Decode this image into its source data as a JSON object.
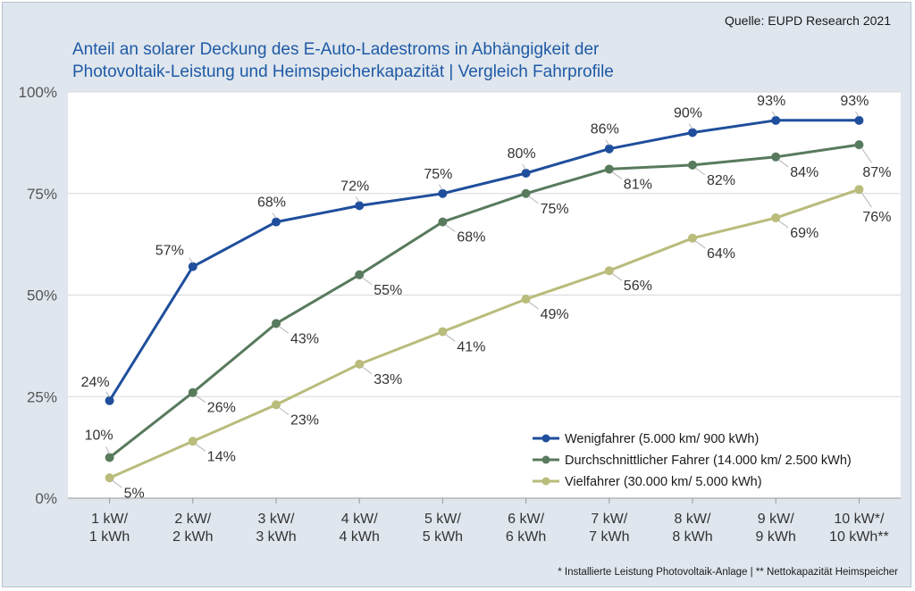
{
  "source": "Quelle: EUPD Research 2021",
  "title_line1": "Anteil an solarer Deckung des E-Auto-Ladestroms in Abhängigkeit der",
  "title_line2": "Photovoltaik-Leistung und Heimspeicherkapazität | Vergleich Fahrprofile",
  "footnote": "* Installierte Leistung Photovoltaik-Anlage | ** Nettokapazität Heimspeicher",
  "chart_data": {
    "type": "line",
    "categories": [
      [
        "1 kW/",
        "1 kWh"
      ],
      [
        "2 kW/",
        "2 kWh"
      ],
      [
        "3 kW/",
        "3 kWh"
      ],
      [
        "4 kW/",
        "4 kWh"
      ],
      [
        "5 kW/",
        "5 kWh"
      ],
      [
        "6 kW/",
        "6 kWh"
      ],
      [
        "7 kW/",
        "7 kWh"
      ],
      [
        "8 kW/",
        "8 kWh"
      ],
      [
        "9 kW/",
        "9 kWh"
      ],
      [
        "10 kW*/",
        "10 kWh**"
      ]
    ],
    "yticks": [
      "0%",
      "25%",
      "50%",
      "75%",
      "100%"
    ],
    "ylim": [
      0,
      100
    ],
    "grid": "horizontal",
    "legend_position": "bottom-right",
    "series": [
      {
        "name": "Wenigfahrer (5.000 km/ 900 kWh)",
        "color": "#1f4e9c",
        "values": [
          24,
          57,
          68,
          72,
          75,
          80,
          86,
          90,
          93,
          93
        ],
        "labels": [
          "24%",
          "57%",
          "68%",
          "72%",
          "75%",
          "80%",
          "86%",
          "90%",
          "93%",
          "93%"
        ]
      },
      {
        "name": "Durchschnittlicher Fahrer (14.000 km/ 2.500 kWh)",
        "color": "#587a5d",
        "values": [
          10,
          26,
          43,
          55,
          68,
          75,
          81,
          82,
          84,
          87
        ],
        "labels": [
          "10%",
          "26%",
          "43%",
          "55%",
          "68%",
          "75%",
          "81%",
          "82%",
          "84%",
          "87%"
        ]
      },
      {
        "name": "Vielfahrer (30.000 km/ 5.000 kWh)",
        "color": "#b9bc7b",
        "values": [
          5,
          14,
          23,
          33,
          41,
          49,
          56,
          64,
          69,
          76
        ],
        "labels": [
          "5%",
          "14%",
          "23%",
          "33%",
          "41%",
          "49%",
          "56%",
          "64%",
          "69%",
          "76%"
        ]
      }
    ]
  }
}
